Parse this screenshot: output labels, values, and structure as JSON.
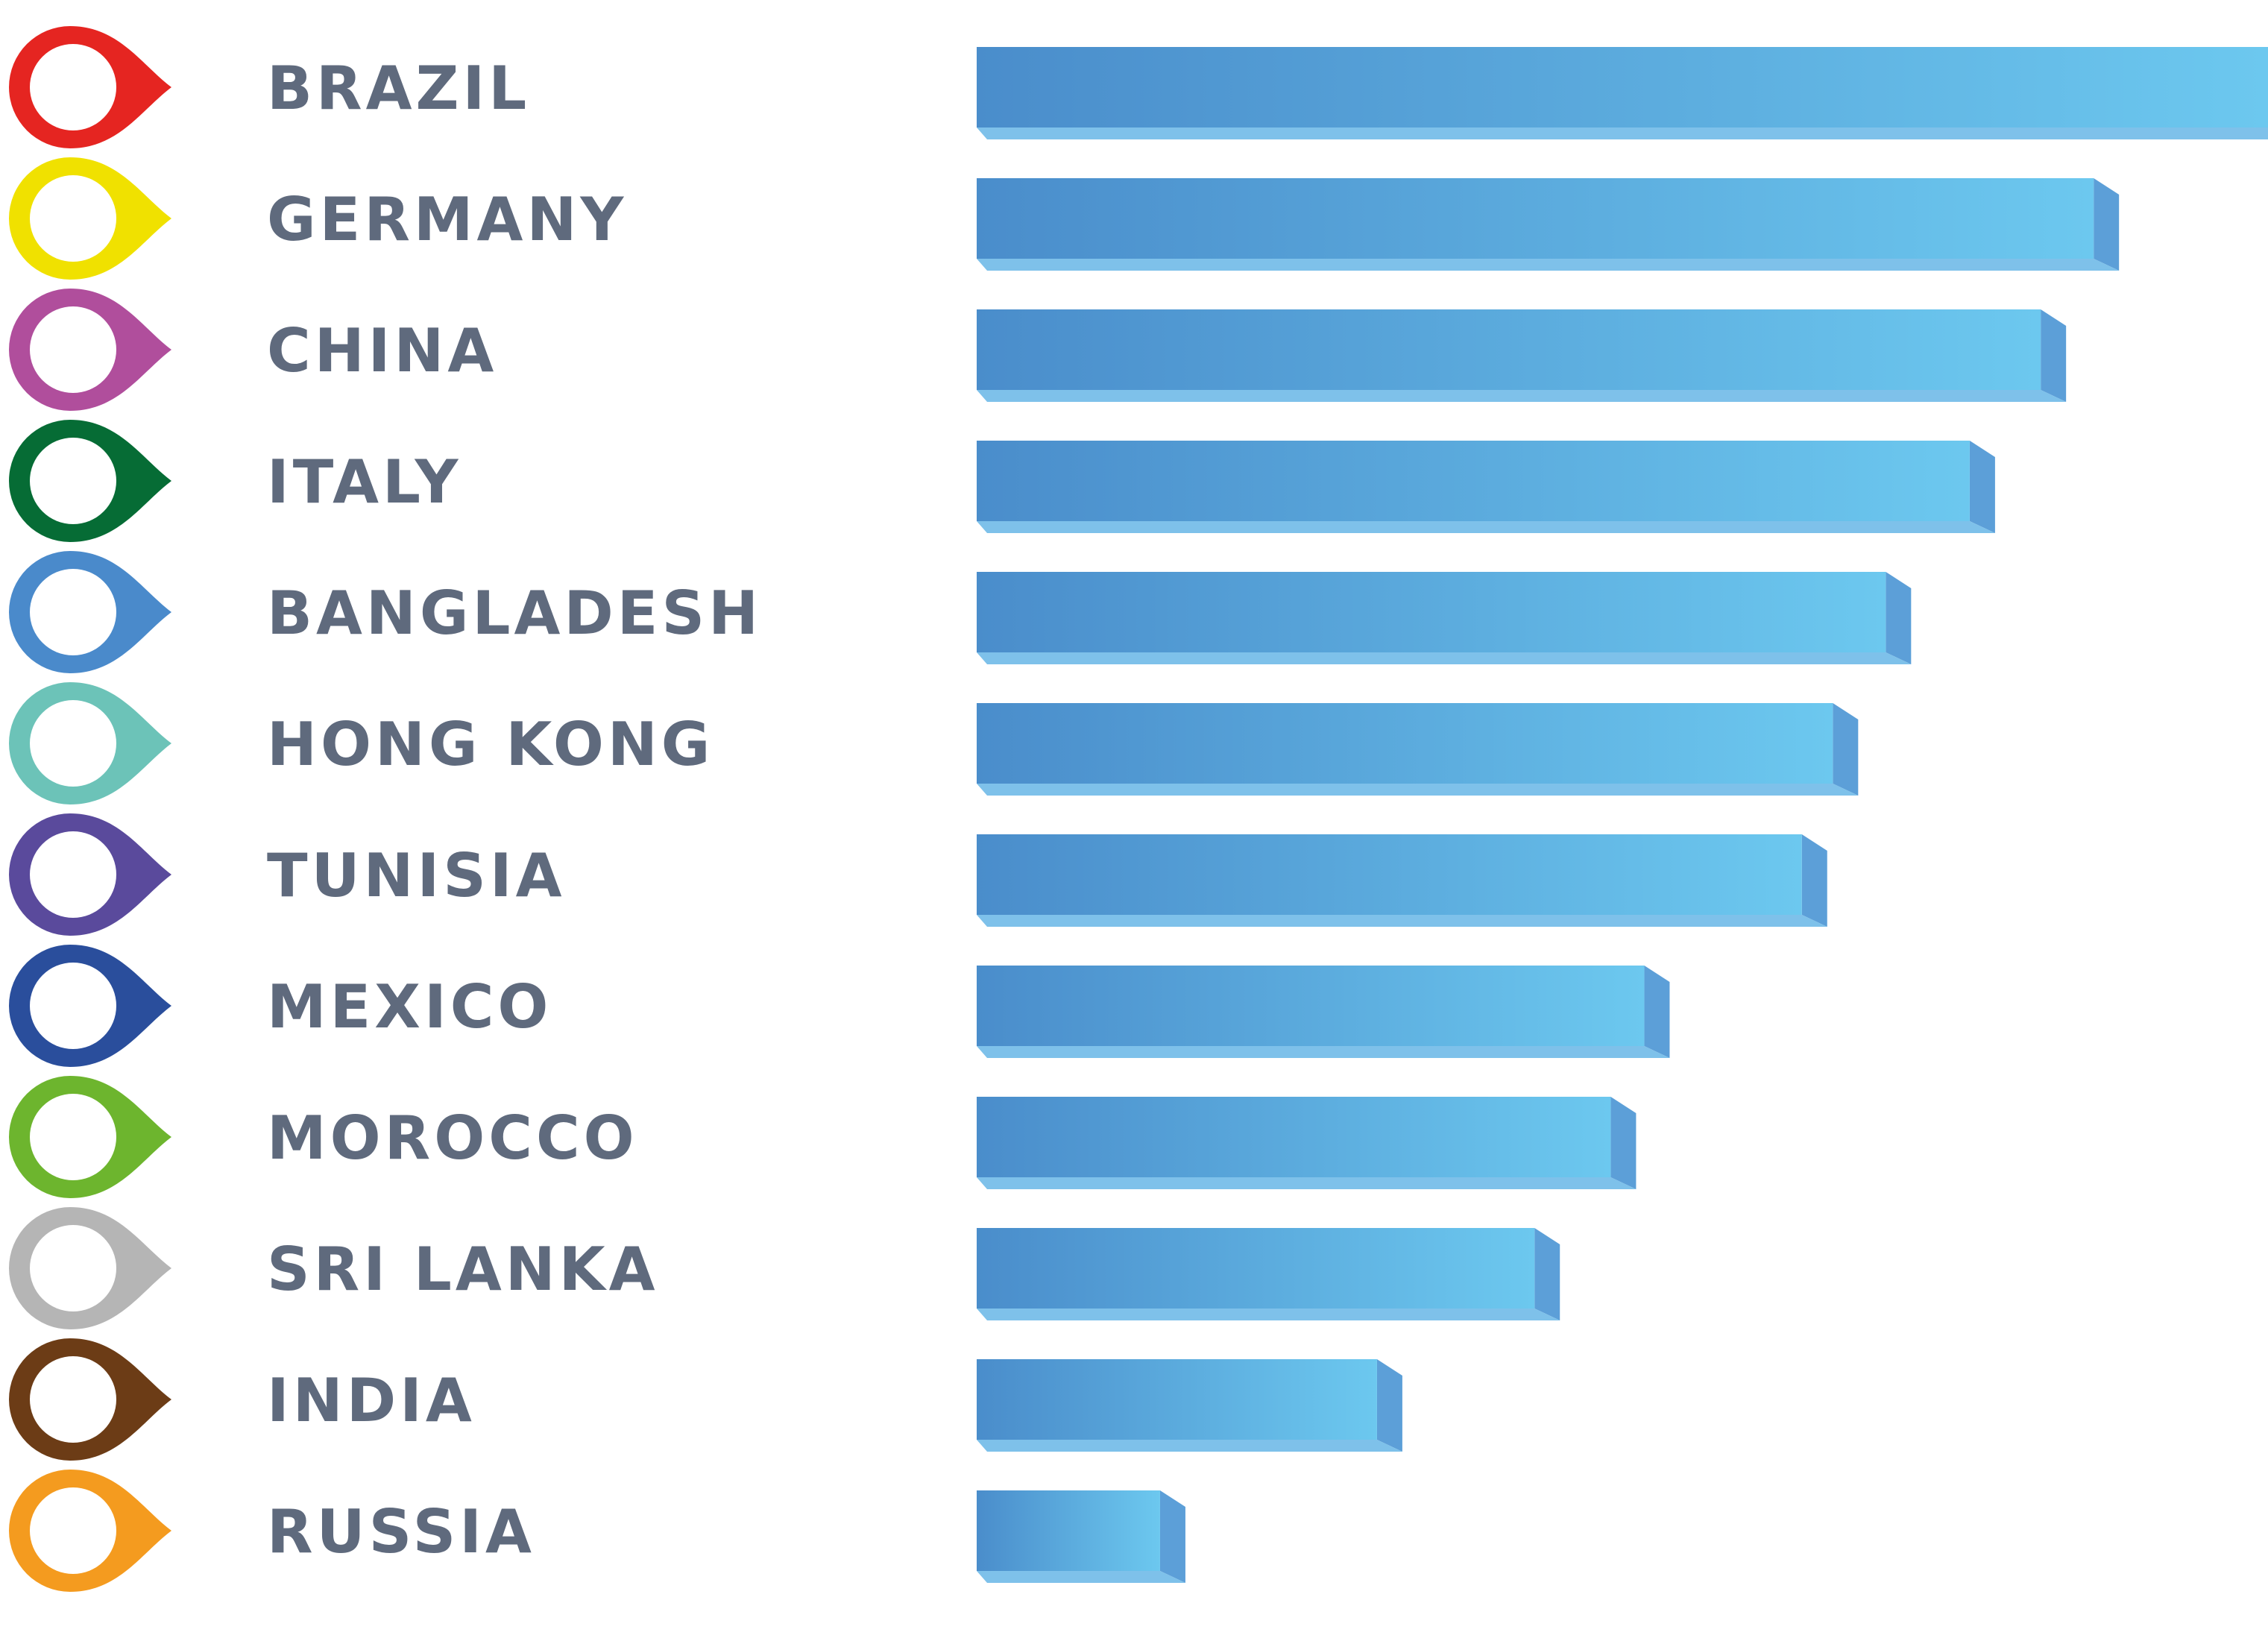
{
  "chart_data": {
    "type": "bar",
    "orientation": "horizontal",
    "title": "",
    "xlabel": "",
    "ylabel": "",
    "xlim": [
      0,
      100
    ],
    "legend": "none",
    "grid": false,
    "bar_gradient": [
      "#4a8dcb",
      "#6cc8ef"
    ],
    "categories": [
      {
        "label": "BRAZIL",
        "value": 100,
        "marker_color": "#e52521"
      },
      {
        "label": "GERMANY",
        "value": 86.5,
        "marker_color": "#f0e100"
      },
      {
        "label": "CHINA",
        "value": 82.4,
        "marker_color": "#b04e9c"
      },
      {
        "label": "ITALY",
        "value": 76.9,
        "marker_color": "#066c35"
      },
      {
        "label": "BANGLADESH",
        "value": 70.4,
        "marker_color": "#4a8acb"
      },
      {
        "label": "HONG KONG",
        "value": 66.3,
        "marker_color": "#6cc3b8"
      },
      {
        "label": "TUNISIA",
        "value": 63.9,
        "marker_color": "#5a4a9c"
      },
      {
        "label": "MEXICO",
        "value": 51.7,
        "marker_color": "#2a4e9c"
      },
      {
        "label": "MOROCCO",
        "value": 49.1,
        "marker_color": "#6db52e"
      },
      {
        "label": "SRI LANKA",
        "value": 43.2,
        "marker_color": "#b5b5b5"
      },
      {
        "label": "INDIA",
        "value": 31.0,
        "marker_color": "#6c3c16"
      },
      {
        "label": "RUSSIA",
        "value": 14.2,
        "marker_color": "#f49b1f"
      }
    ]
  }
}
